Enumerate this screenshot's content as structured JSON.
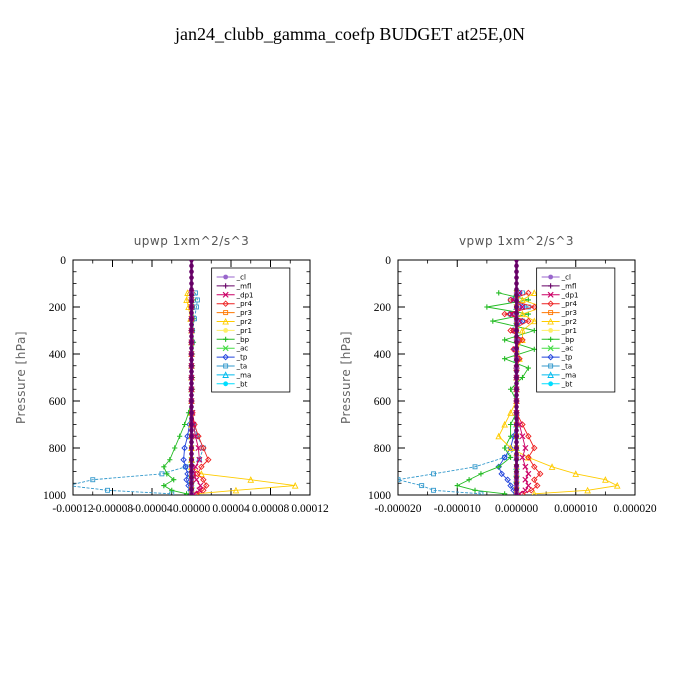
{
  "title": "jan24_clubb_gamma_coefp  BUDGET at25E,0N",
  "chart_data": [
    {
      "type": "line",
      "title": "upwp   1xm^2/s^3",
      "xlabel": "",
      "ylabel": "Pressure [hPa]",
      "xlim": [
        -0.00012,
        0.00012
      ],
      "ylim": [
        1000,
        0
      ],
      "y_ticks": [
        0,
        200,
        400,
        600,
        800,
        1000
      ],
      "x_tick_labels": [
        "-0.00012",
        "-0.00008",
        "-0.00004",
        "0.00000",
        "0.00004",
        "0.00008",
        "0.00012"
      ],
      "legend_position": "top-right",
      "grid": false,
      "y": [
        140,
        170,
        200,
        250,
        300,
        350,
        400,
        450,
        500,
        550,
        600,
        650,
        700,
        750,
        800,
        850,
        880,
        910,
        935,
        960,
        980,
        995
      ],
      "series": [
        {
          "name": "_cl",
          "color": "#9966cc",
          "values": [
            0,
            0,
            0,
            0,
            0,
            0,
            0,
            0,
            0,
            0,
            0,
            0,
            0,
            0,
            0,
            0,
            0,
            0,
            0,
            0,
            0,
            0
          ]
        },
        {
          "name": "_mfl",
          "color": "#660066",
          "values": [
            0,
            0,
            0,
            0,
            0,
            0,
            0,
            0,
            0,
            0,
            0,
            0,
            0,
            0,
            0,
            0,
            0,
            0,
            0,
            0,
            0,
            0
          ]
        },
        {
          "name": "_dp1",
          "color": "#cc0066",
          "values": [
            0,
            0,
            0,
            0,
            0,
            0,
            0,
            0,
            0,
            0,
            0,
            1e-06,
            2e-06,
            4e-06,
            7e-06,
            8e-06,
            4e-06,
            2e-06,
            5e-06,
            9e-06,
            8e-06,
            3e-06
          ]
        },
        {
          "name": "_pr4",
          "color": "#ee2222",
          "values": [
            0,
            0,
            0,
            0,
            0,
            0,
            0,
            0,
            0,
            0,
            0,
            1e-06,
            3e-06,
            7e-06,
            1.2e-05,
            1.7e-05,
            1e-05,
            6e-06,
            1.2e-05,
            1.5e-05,
            1.2e-05,
            5e-06
          ]
        },
        {
          "name": "_pr3",
          "color": "#ff7700",
          "values": [
            0,
            0,
            0,
            0,
            0,
            0,
            0,
            0,
            0,
            0,
            0,
            0,
            0,
            0,
            0,
            0,
            0,
            0,
            0,
            0,
            0,
            0
          ]
        },
        {
          "name": "_pr2",
          "color": "#ffcc00",
          "values": [
            -4e-06,
            -5e-06,
            -3e-06,
            -1e-06,
            0,
            0,
            0,
            0,
            0,
            0,
            0,
            0,
            0,
            0,
            0,
            0,
            0,
            1e-05,
            6e-05,
            0.000105,
            4.5e-05,
            5e-06
          ]
        },
        {
          "name": "_pr1",
          "color": "#ffee66",
          "values": [
            0,
            0,
            0,
            0,
            0,
            0,
            0,
            0,
            0,
            0,
            0,
            0,
            0,
            0,
            0,
            0,
            0,
            0,
            0,
            0,
            0,
            0
          ]
        },
        {
          "name": "_bp",
          "color": "#22bb22",
          "values": [
            1e-06,
            2e-06,
            1e-06,
            2e-06,
            1e-06,
            2e-06,
            1e-06,
            1e-06,
            1e-06,
            1e-06,
            0,
            -3e-06,
            -7e-06,
            -1.2e-05,
            -1.7e-05,
            -2.2e-05,
            -2.8e-05,
            -2.5e-05,
            -1.8e-05,
            -2.8e-05,
            -2e-05,
            -5e-06
          ]
        },
        {
          "name": "_ac",
          "color": "#44dd44",
          "values": [
            0,
            0,
            0,
            0,
            0,
            0,
            0,
            0,
            0,
            0,
            0,
            0,
            0,
            0,
            0,
            0,
            0,
            0,
            0,
            0,
            0,
            0
          ]
        },
        {
          "name": "_tp",
          "color": "#2244dd",
          "values": [
            0,
            0,
            0,
            0,
            0,
            0,
            0,
            0,
            0,
            0,
            0,
            -1e-06,
            -2e-06,
            -4e-06,
            -7e-06,
            -8e-06,
            -6e-06,
            -4e-06,
            -5e-06,
            -3e-06,
            -1e-06,
            0
          ]
        },
        {
          "name": "_ta",
          "color": "#3399cc",
          "values": [
            4e-06,
            6e-06,
            5e-06,
            3e-06,
            1e-06,
            1e-06,
            0,
            0,
            0,
            0,
            0,
            0,
            2e-06,
            6e-06,
            1.2e-05,
            8e-06,
            -6e-06,
            -3e-05,
            -0.0001,
            -0.000125,
            -8.5e-05,
            -2e-05
          ]
        },
        {
          "name": "_ma",
          "color": "#00bbee",
          "values": [
            0,
            0,
            0,
            0,
            0,
            0,
            0,
            0,
            0,
            0,
            0,
            0,
            0,
            0,
            0,
            0,
            0,
            0,
            0,
            0,
            0,
            0
          ]
        },
        {
          "name": "_bt",
          "color": "#00ddff",
          "values": [
            0,
            0,
            0,
            0,
            0,
            0,
            0,
            0,
            0,
            0,
            0,
            0,
            0,
            0,
            0,
            0,
            0,
            0,
            0,
            0,
            0,
            0
          ]
        }
      ]
    },
    {
      "type": "line",
      "title": "vpwp   1xm^2/s^3",
      "xlabel": "",
      "ylabel": "Pressure [hPa]",
      "xlim": [
        -2e-05,
        2e-05
      ],
      "ylim": [
        1000,
        0
      ],
      "y_ticks": [
        0,
        200,
        400,
        600,
        800,
        1000
      ],
      "x_tick_labels": [
        "-0.000020",
        "-0.000010",
        "0.000000",
        "0.000010",
        "0.000020"
      ],
      "legend_position": "top-right",
      "grid": false,
      "y": [
        140,
        170,
        200,
        230,
        260,
        300,
        340,
        380,
        420,
        460,
        500,
        550,
        600,
        650,
        700,
        750,
        800,
        840,
        880,
        910,
        935,
        960,
        980,
        995
      ],
      "series": [
        {
          "name": "_cl",
          "color": "#9966cc",
          "values": [
            0,
            0,
            0,
            0,
            0,
            0,
            0,
            0,
            0,
            0,
            0,
            0,
            0,
            0,
            0,
            0,
            0,
            0,
            0,
            0,
            0,
            0,
            0,
            0
          ]
        },
        {
          "name": "_mfl",
          "color": "#660066",
          "values": [
            0,
            0,
            0,
            0,
            0,
            0,
            0,
            0,
            0,
            0,
            0,
            0,
            0,
            0,
            0,
            0,
            0,
            0,
            0,
            0,
            0,
            0,
            0,
            0
          ]
        },
        {
          "name": "_dp1",
          "color": "#cc0066",
          "values": [
            5e-07,
            -5e-07,
            1e-06,
            -8e-07,
            5e-07,
            -3e-07,
            2e-07,
            -2e-07,
            1e-07,
            0,
            0,
            0,
            0,
            0,
            5e-07,
            1e-06,
            1.5e-06,
            1e-06,
            1.5e-06,
            2e-06,
            1.5e-06,
            2e-06,
            1.5e-06,
            5e-07
          ]
        },
        {
          "name": "_pr4",
          "color": "#ee2222",
          "values": [
            2e-06,
            -1e-06,
            3e-06,
            -2e-06,
            2e-06,
            -1e-06,
            1e-06,
            -5e-07,
            5e-07,
            0,
            0,
            0,
            0,
            0,
            1e-06,
            2e-06,
            3e-06,
            2e-06,
            3e-06,
            4e-06,
            3e-06,
            3.5e-06,
            2.5e-06,
            1e-06
          ]
        },
        {
          "name": "_pr3",
          "color": "#ff7700",
          "values": [
            0,
            0,
            0,
            0,
            0,
            0,
            0,
            0,
            0,
            0,
            0,
            0,
            0,
            0,
            0,
            0,
            0,
            0,
            0,
            0,
            0,
            0,
            0,
            0
          ]
        },
        {
          "name": "_pr2",
          "color": "#ffcc00",
          "values": [
            3e-06,
            1e-06,
            4.5e-06,
            1e-06,
            3e-06,
            1e-06,
            1e-06,
            0,
            5e-07,
            0,
            0,
            0,
            0,
            -1e-06,
            -2e-06,
            -3e-06,
            -1e-06,
            2e-06,
            6e-06,
            1e-05,
            1.5e-05,
            1.7e-05,
            1.2e-05,
            3e-06
          ]
        },
        {
          "name": "_pr1",
          "color": "#ffee66",
          "values": [
            0,
            0,
            0,
            0,
            0,
            0,
            0,
            0,
            0,
            0,
            0,
            0,
            0,
            0,
            0,
            0,
            0,
            0,
            0,
            0,
            0,
            0,
            0,
            0
          ]
        },
        {
          "name": "_bp",
          "color": "#22bb22",
          "values": [
            -3e-06,
            2e-06,
            -5e-06,
            2e-06,
            -4e-06,
            3e-06,
            -2e-06,
            3e-06,
            -2e-06,
            2e-06,
            1e-06,
            -1e-06,
            0,
            0,
            -1e-06,
            -1e-06,
            -2e-06,
            -1e-06,
            -3e-06,
            -6e-06,
            -8e-06,
            -1e-05,
            -7e-06,
            -2e-06
          ]
        },
        {
          "name": "_ac",
          "color": "#44dd44",
          "values": [
            0,
            0,
            0,
            0,
            0,
            0,
            0,
            0,
            0,
            0,
            0,
            0,
            0,
            0,
            0,
            0,
            0,
            0,
            0,
            0,
            0,
            0,
            0,
            0
          ]
        },
        {
          "name": "_tp",
          "color": "#2244dd",
          "values": [
            5e-07,
            -5e-07,
            1e-06,
            -1e-06,
            1e-06,
            -5e-07,
            5e-07,
            -3e-07,
            3e-07,
            0,
            0,
            0,
            0,
            0,
            0,
            -5e-07,
            -1e-06,
            -2e-06,
            -3e-06,
            -2.5e-06,
            -1.5e-06,
            -1e-06,
            -5e-07,
            0
          ]
        },
        {
          "name": "_ta",
          "color": "#3399cc",
          "values": [
            1e-06,
            -1e-06,
            2e-06,
            -1e-06,
            1e-06,
            -5e-07,
            5e-07,
            0,
            0,
            0,
            0,
            0,
            0,
            0,
            0,
            0,
            0,
            -2e-06,
            -7e-06,
            -1.4e-05,
            -2e-05,
            -1.6e-05,
            -1.4e-05,
            -6e-06
          ]
        },
        {
          "name": "_ma",
          "color": "#00bbee",
          "values": [
            0,
            0,
            0,
            0,
            0,
            0,
            0,
            0,
            0,
            0,
            0,
            0,
            0,
            0,
            0,
            0,
            0,
            0,
            0,
            0,
            0,
            0,
            0,
            0
          ]
        },
        {
          "name": "_bt",
          "color": "#00ddff",
          "values": [
            0,
            0,
            0,
            0,
            0,
            0,
            0,
            0,
            0,
            0,
            0,
            0,
            0,
            0,
            0,
            0,
            0,
            0,
            0,
            0,
            0,
            0,
            0,
            0
          ]
        }
      ]
    }
  ]
}
